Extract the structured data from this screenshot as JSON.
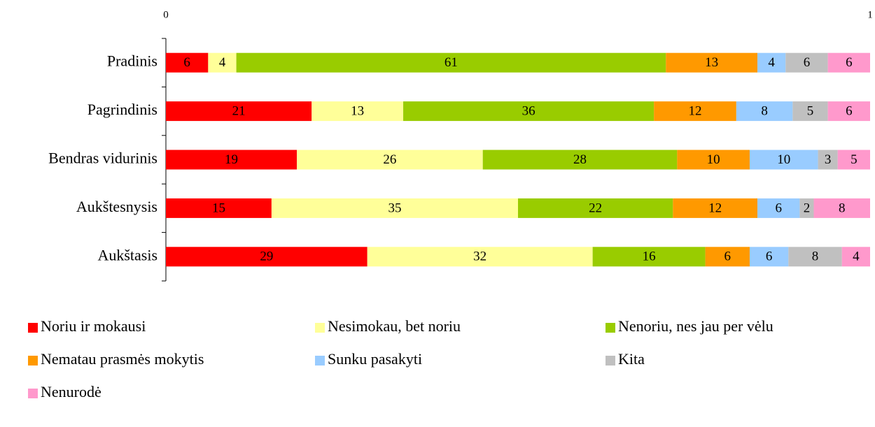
{
  "chart_data": {
    "type": "stacked-bar-horizontal",
    "categories": [
      "Pradinis",
      "Pagrindinis",
      "Bendras vidurinis",
      "Aukštesnysis",
      "Aukštasis"
    ],
    "xlim": [
      0,
      1
    ],
    "xticks": [
      0,
      1
    ],
    "legend": "bottom",
    "series": [
      {
        "name": "Noriu ir mokausi",
        "color": "#ff0000",
        "values": [
          0.06,
          0.207,
          0.186,
          0.15,
          0.286
        ],
        "value_labels": [
          "6",
          "21",
          "19",
          "15",
          "29"
        ]
      },
      {
        "name": "Nesimokau, bet noriu",
        "color": "#ffff99",
        "values": [
          0.04,
          0.13,
          0.264,
          0.35,
          0.32
        ],
        "value_labels": [
          "4",
          "13",
          "26",
          "35",
          "32"
        ]
      },
      {
        "name": "Nenoriu, nes jau per vėlu",
        "color": "#99cc00",
        "values": [
          0.61,
          0.356,
          0.276,
          0.22,
          0.16
        ],
        "value_labels": [
          "61",
          "36",
          "28",
          "22",
          "16"
        ]
      },
      {
        "name": "Nematau prasmės mokytis",
        "color": "#ff9900",
        "values": [
          0.13,
          0.117,
          0.103,
          0.12,
          0.063
        ],
        "value_labels": [
          "13",
          "12",
          "10",
          "12",
          "6"
        ]
      },
      {
        "name": "Sunku pasakyti",
        "color": "#99ccff",
        "values": [
          0.04,
          0.08,
          0.097,
          0.06,
          0.055
        ],
        "value_labels": [
          "4",
          "8",
          "10",
          "6",
          "6"
        ]
      },
      {
        "name": "Kita",
        "color": "#c0c0c0",
        "values": [
          0.06,
          0.05,
          0.028,
          0.02,
          0.076
        ],
        "value_labels": [
          "6",
          "5",
          "3",
          "2",
          "8"
        ]
      },
      {
        "name": "Nenurodė",
        "color": "#ff99cc",
        "values": [
          0.06,
          0.06,
          0.046,
          0.08,
          0.04
        ],
        "value_labels": [
          "6",
          "6",
          "5",
          "8",
          "4"
        ]
      }
    ]
  }
}
